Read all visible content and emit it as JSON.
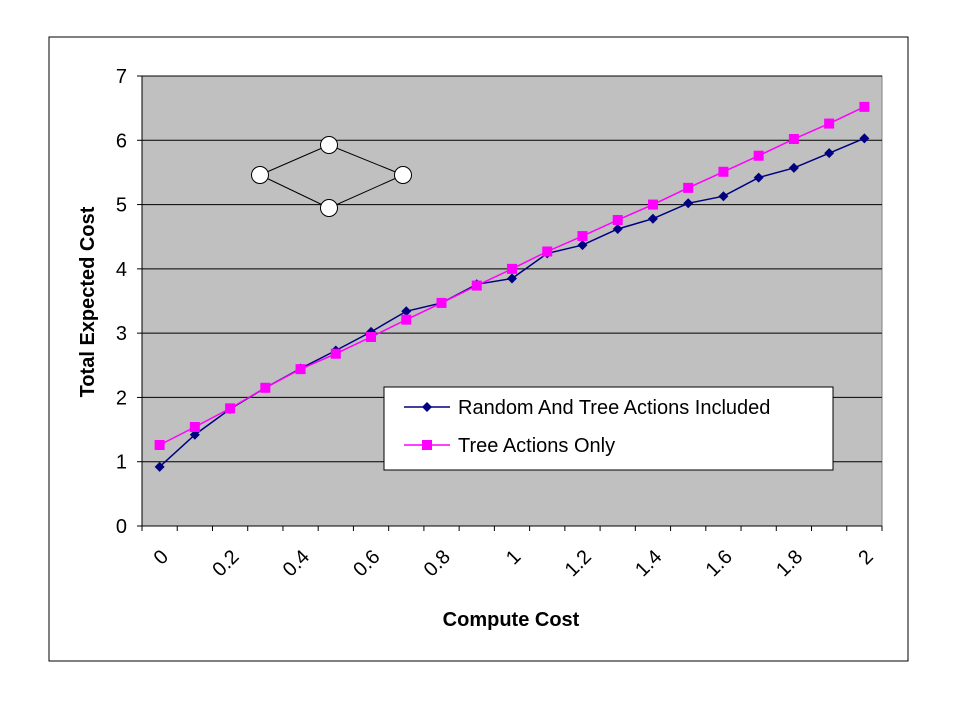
{
  "chart_data": {
    "type": "line",
    "xlabel": "Compute Cost",
    "ylabel": "Total Expected Cost",
    "xlim": [
      0,
      2.1
    ],
    "ylim": [
      0,
      7
    ],
    "x_ticks": [
      "0",
      "0.2",
      "0.4",
      "0.6",
      "0.8",
      "1",
      "1.2",
      "1.4",
      "1.6",
      "1.8",
      "2"
    ],
    "y_ticks": [
      "0",
      "1",
      "2",
      "3",
      "4",
      "5",
      "6",
      "7"
    ],
    "grid": "horizontal",
    "legend_position": "lower-right",
    "plot_background": "#c0c0c0",
    "x": [
      0.05,
      0.15,
      0.25,
      0.35,
      0.45,
      0.55,
      0.65,
      0.75,
      0.85,
      0.95,
      1.05,
      1.15,
      1.25,
      1.35,
      1.45,
      1.55,
      1.65,
      1.75,
      1.85,
      1.95,
      2.05
    ],
    "series": [
      {
        "name": "Random And Tree Actions Included",
        "color": "#000080",
        "marker": "diamond",
        "values": [
          0.92,
          1.42,
          1.82,
          2.15,
          2.45,
          2.73,
          3.02,
          3.34,
          3.47,
          3.76,
          3.85,
          4.24,
          4.37,
          4.62,
          4.78,
          5.02,
          5.13,
          5.42,
          5.57,
          5.8,
          6.03
        ]
      },
      {
        "name": "Tree Actions Only",
        "color": "#ff00ff",
        "marker": "square",
        "values": [
          1.26,
          1.54,
          1.83,
          2.15,
          2.44,
          2.68,
          2.94,
          3.21,
          3.47,
          3.74,
          4.0,
          4.27,
          4.51,
          4.76,
          5.0,
          5.26,
          5.51,
          5.76,
          6.02,
          6.26,
          6.52
        ]
      }
    ]
  },
  "inset_diagram": {
    "node_icon": "circle-node",
    "edge_color": "#000000",
    "node_fill": "#ffffff"
  }
}
